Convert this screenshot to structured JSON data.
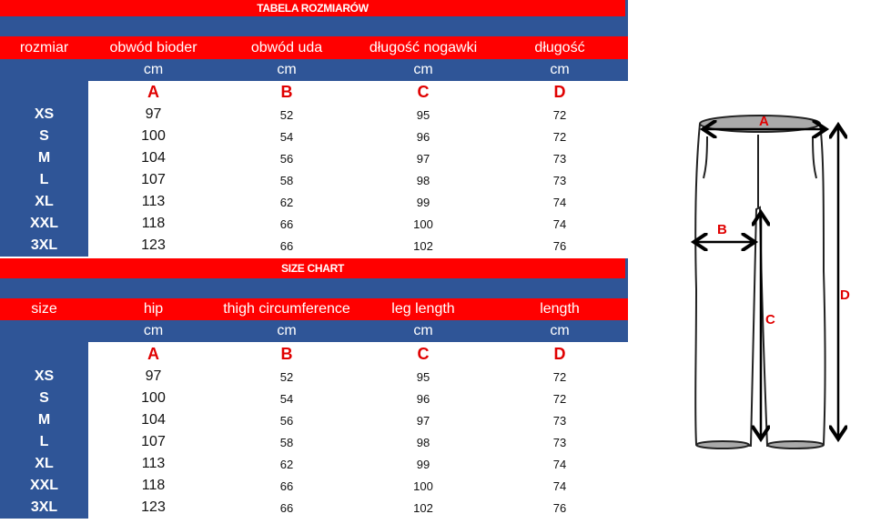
{
  "tables": [
    {
      "title": "TABELA ROZMIARÓW",
      "headers": [
        "rozmiar",
        "obwód bioder",
        "obwód uda",
        "długość nogawki",
        "długość"
      ],
      "units": [
        "",
        "cm",
        "cm",
        "cm",
        "cm"
      ],
      "letters": [
        "",
        "A",
        "B",
        "C",
        "D"
      ],
      "rows": [
        [
          "XS",
          "97",
          "52",
          "95",
          "72"
        ],
        [
          "S",
          "100",
          "54",
          "96",
          "72"
        ],
        [
          "M",
          "104",
          "56",
          "97",
          "73"
        ],
        [
          "L",
          "107",
          "58",
          "98",
          "73"
        ],
        [
          "XL",
          "113",
          "62",
          "99",
          "74"
        ],
        [
          "XXL",
          "118",
          "66",
          "100",
          "74"
        ],
        [
          "3XL",
          "123",
          "66",
          "102",
          "76"
        ]
      ]
    },
    {
      "title": "SIZE CHART",
      "headers": [
        "size",
        "hip",
        "thigh circumference",
        "leg length",
        "length"
      ],
      "units": [
        "",
        "cm",
        "cm",
        "cm",
        "cm"
      ],
      "letters": [
        "",
        "A",
        "B",
        "C",
        "D"
      ],
      "rows": [
        [
          "XS",
          "97",
          "52",
          "95",
          "72"
        ],
        [
          "S",
          "100",
          "54",
          "96",
          "72"
        ],
        [
          "M",
          "104",
          "56",
          "97",
          "73"
        ],
        [
          "L",
          "107",
          "58",
          "98",
          "73"
        ],
        [
          "XL",
          "113",
          "62",
          "99",
          "74"
        ],
        [
          "XXL",
          "118",
          "66",
          "100",
          "74"
        ],
        [
          "3XL",
          "123",
          "66",
          "102",
          "76"
        ]
      ]
    }
  ],
  "diagram": {
    "labels": [
      "A",
      "B",
      "C",
      "D"
    ]
  },
  "colors": {
    "red": "#ff0000",
    "blue": "#2f5597",
    "letter": "#e00000"
  }
}
